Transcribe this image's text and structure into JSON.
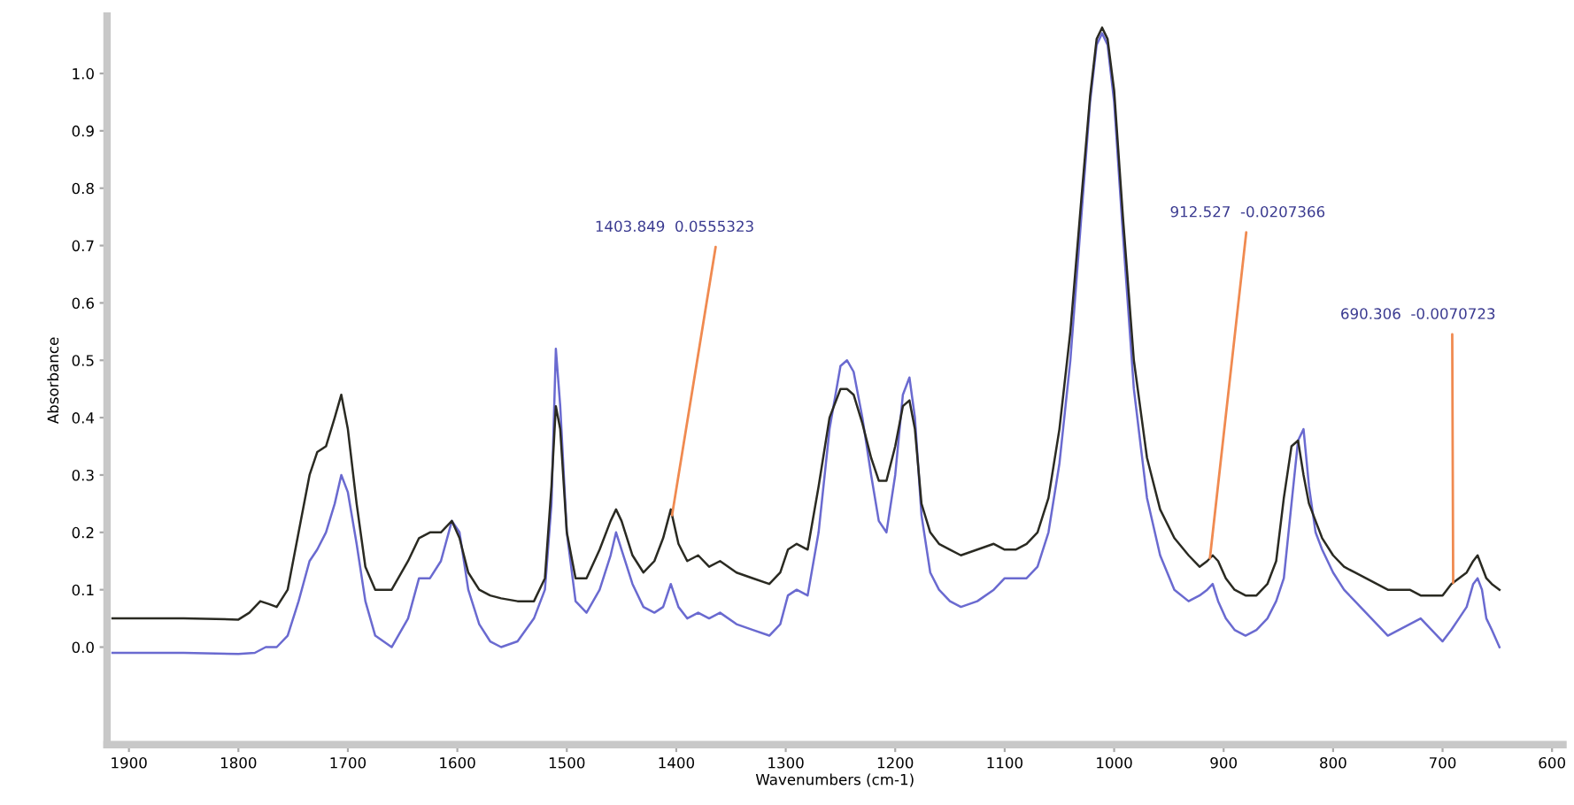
{
  "chart_data": {
    "type": "line",
    "xlabel": "Wavenumbers (cm-1)",
    "ylabel": "Absorbance",
    "xlim": [
      1920,
      590
    ],
    "xticks": [
      1900,
      1800,
      1700,
      1600,
      1500,
      1400,
      1300,
      1200,
      1100,
      1000,
      900,
      800,
      700,
      600
    ],
    "ylim": [
      -0.17,
      1.1
    ],
    "yticks": [
      {
        "value": 0,
        "label": "0.0"
      },
      0.1,
      0.2,
      0.3,
      0.4,
      0.5,
      0.6,
      0.7,
      0.8,
      0.9,
      {
        "value": 1,
        "label": "1.0"
      }
    ],
    "grid": false,
    "marker": "none",
    "line_style": "solid",
    "series": [
      {
        "color": "#6a6ad0",
        "x": [
          1915,
          1850,
          1800,
          1785,
          1775,
          1765,
          1755,
          1745,
          1735,
          1728,
          1720,
          1712,
          1706,
          1700,
          1692,
          1684,
          1675,
          1660,
          1645,
          1635,
          1625,
          1615,
          1605,
          1598,
          1590,
          1580,
          1570,
          1560,
          1545,
          1530,
          1520,
          1514,
          1510,
          1506,
          1500,
          1492,
          1482,
          1470,
          1460,
          1455,
          1450,
          1440,
          1430,
          1420,
          1412,
          1405,
          1398,
          1390,
          1380,
          1370,
          1360,
          1345,
          1330,
          1315,
          1305,
          1298,
          1290,
          1280,
          1270,
          1260,
          1250,
          1244,
          1238,
          1230,
          1222,
          1215,
          1208,
          1200,
          1193,
          1187,
          1182,
          1176,
          1168,
          1160,
          1150,
          1140,
          1125,
          1110,
          1100,
          1090,
          1080,
          1070,
          1060,
          1050,
          1040,
          1030,
          1022,
          1016,
          1011,
          1006,
          1000,
          992,
          982,
          970,
          958,
          945,
          932,
          922,
          915,
          910,
          905,
          898,
          890,
          880,
          870,
          860,
          852,
          845,
          838,
          832,
          827,
          822,
          816,
          810,
          800,
          790,
          780,
          770,
          760,
          750,
          740,
          730,
          720,
          710,
          700,
          692,
          685,
          678,
          672,
          668,
          664,
          660,
          655,
          648
        ],
        "values": [
          -0.01,
          -0.01,
          -0.012,
          -0.01,
          0.0,
          0.0,
          0.02,
          0.08,
          0.15,
          0.17,
          0.2,
          0.25,
          0.3,
          0.27,
          0.18,
          0.08,
          0.02,
          0.0,
          0.05,
          0.12,
          0.12,
          0.15,
          0.22,
          0.2,
          0.1,
          0.04,
          0.01,
          0.0,
          0.01,
          0.05,
          0.1,
          0.25,
          0.52,
          0.42,
          0.2,
          0.08,
          0.06,
          0.1,
          0.16,
          0.2,
          0.17,
          0.11,
          0.07,
          0.06,
          0.07,
          0.11,
          0.07,
          0.05,
          0.06,
          0.05,
          0.06,
          0.04,
          0.03,
          0.02,
          0.04,
          0.09,
          0.1,
          0.09,
          0.2,
          0.38,
          0.49,
          0.5,
          0.48,
          0.4,
          0.3,
          0.22,
          0.2,
          0.3,
          0.44,
          0.47,
          0.4,
          0.23,
          0.13,
          0.1,
          0.08,
          0.07,
          0.08,
          0.1,
          0.12,
          0.12,
          0.12,
          0.14,
          0.2,
          0.32,
          0.5,
          0.75,
          0.95,
          1.05,
          1.07,
          1.05,
          0.95,
          0.72,
          0.45,
          0.26,
          0.16,
          0.1,
          0.08,
          0.09,
          0.1,
          0.11,
          0.08,
          0.05,
          0.03,
          0.02,
          0.03,
          0.05,
          0.08,
          0.12,
          0.25,
          0.36,
          0.38,
          0.28,
          0.2,
          0.17,
          0.13,
          0.1,
          0.08,
          0.06,
          0.04,
          0.02,
          0.03,
          0.04,
          0.05,
          0.03,
          0.01,
          0.03,
          0.05,
          0.07,
          0.11,
          0.12,
          0.1,
          0.05,
          0.03,
          0.0
        ]
      },
      {
        "color": "#2a2a22",
        "x": [
          1915,
          1850,
          1800,
          1790,
          1780,
          1772,
          1765,
          1755,
          1745,
          1735,
          1728,
          1720,
          1712,
          1706,
          1700,
          1692,
          1684,
          1675,
          1660,
          1645,
          1635,
          1625,
          1615,
          1605,
          1598,
          1590,
          1580,
          1570,
          1560,
          1545,
          1530,
          1520,
          1514,
          1510,
          1506,
          1500,
          1492,
          1482,
          1470,
          1460,
          1455,
          1450,
          1440,
          1430,
          1420,
          1412,
          1405,
          1398,
          1390,
          1380,
          1370,
          1360,
          1345,
          1330,
          1315,
          1305,
          1298,
          1290,
          1280,
          1270,
          1260,
          1250,
          1244,
          1238,
          1230,
          1222,
          1215,
          1208,
          1200,
          1193,
          1187,
          1182,
          1176,
          1168,
          1160,
          1150,
          1140,
          1125,
          1110,
          1100,
          1090,
          1080,
          1070,
          1060,
          1050,
          1040,
          1030,
          1022,
          1016,
          1011,
          1006,
          1000,
          992,
          982,
          970,
          958,
          945,
          932,
          922,
          915,
          910,
          905,
          898,
          890,
          880,
          870,
          860,
          852,
          845,
          838,
          832,
          827,
          822,
          816,
          810,
          800,
          790,
          780,
          770,
          760,
          750,
          740,
          730,
          720,
          710,
          700,
          692,
          685,
          678,
          672,
          668,
          664,
          660,
          655,
          648
        ],
        "values": [
          0.05,
          0.05,
          0.048,
          0.06,
          0.08,
          0.075,
          0.07,
          0.1,
          0.2,
          0.3,
          0.34,
          0.35,
          0.4,
          0.44,
          0.38,
          0.25,
          0.14,
          0.1,
          0.1,
          0.15,
          0.19,
          0.2,
          0.2,
          0.22,
          0.19,
          0.13,
          0.1,
          0.09,
          0.085,
          0.08,
          0.08,
          0.12,
          0.28,
          0.42,
          0.38,
          0.2,
          0.12,
          0.12,
          0.17,
          0.22,
          0.24,
          0.22,
          0.16,
          0.13,
          0.15,
          0.19,
          0.24,
          0.18,
          0.15,
          0.16,
          0.14,
          0.15,
          0.13,
          0.12,
          0.11,
          0.13,
          0.17,
          0.18,
          0.17,
          0.28,
          0.4,
          0.45,
          0.45,
          0.44,
          0.39,
          0.33,
          0.29,
          0.29,
          0.35,
          0.42,
          0.43,
          0.38,
          0.25,
          0.2,
          0.18,
          0.17,
          0.16,
          0.17,
          0.18,
          0.17,
          0.17,
          0.18,
          0.2,
          0.26,
          0.38,
          0.55,
          0.78,
          0.96,
          1.06,
          1.08,
          1.06,
          0.97,
          0.75,
          0.5,
          0.33,
          0.24,
          0.19,
          0.16,
          0.14,
          0.15,
          0.16,
          0.15,
          0.12,
          0.1,
          0.09,
          0.09,
          0.11,
          0.15,
          0.26,
          0.35,
          0.36,
          0.3,
          0.25,
          0.22,
          0.19,
          0.16,
          0.14,
          0.13,
          0.12,
          0.11,
          0.1,
          0.1,
          0.1,
          0.09,
          0.09,
          0.09,
          0.11,
          0.12,
          0.13,
          0.15,
          0.16,
          0.14,
          0.12,
          0.11,
          0.1
        ]
      }
    ],
    "annotations": [
      {
        "text": "1403.849  0.0555323",
        "x": 1403.849,
        "y": 0.23
      },
      {
        "text": "912.527  -0.0207366",
        "x": 912.527,
        "y": 0.155
      },
      {
        "text": "690.306  -0.0070723",
        "x": 690.306,
        "y": 0.112
      }
    ]
  }
}
